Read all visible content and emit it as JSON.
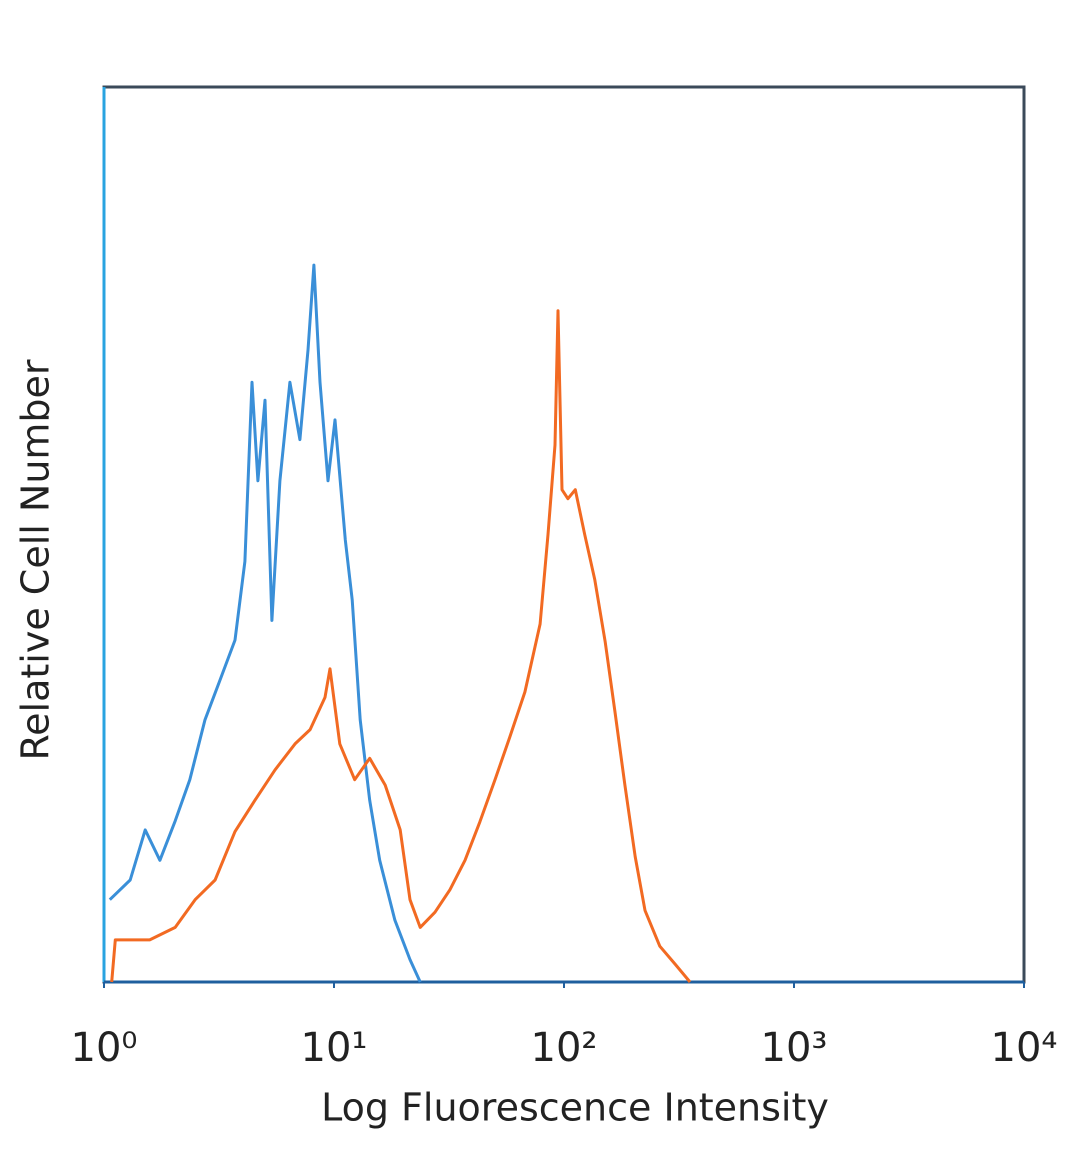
{
  "chart_data": {
    "type": "line",
    "xlabel": "Log Fluorescence Intensity",
    "ylabel": "Relative Cell Number",
    "xscale": "log",
    "xlim": [
      1,
      10000
    ],
    "xticks": [
      {
        "value": 1,
        "label": "10⁰"
      },
      {
        "value": 10,
        "label": "10¹"
      },
      {
        "value": 100,
        "label": "10²"
      },
      {
        "value": 1000,
        "label": "10³"
      },
      {
        "value": 10000,
        "label": "10⁴"
      }
    ],
    "ylim": [
      0,
      100
    ],
    "grid": false,
    "series": [
      {
        "color": "#3a8fd8",
        "x": [
          1.06,
          1.3,
          1.51,
          1.75,
          2.04,
          2.36,
          2.75,
          3.19,
          3.71,
          4.1,
          4.4,
          4.67,
          5.01,
          5.37,
          5.82,
          6.43,
          7.11,
          7.71,
          8.18,
          8.69,
          9.42,
          10.1,
          11.2,
          12.0,
          13.0,
          14.3,
          15.8,
          18.4,
          21.4,
          23.7
        ],
        "values": [
          9.2,
          11.4,
          17,
          13.6,
          18,
          22.6,
          29.3,
          33.7,
          38.2,
          47,
          67,
          56,
          65,
          40.4,
          56,
          67,
          60.6,
          70.6,
          80.1,
          67,
          56,
          62.8,
          49.4,
          42.7,
          29.3,
          20.3,
          13.6,
          6.9,
          2.5,
          0
        ]
      },
      {
        "color": "#f26a22",
        "x": [
          1.08,
          1.12,
          1.58,
          2.04,
          2.49,
          3.04,
          3.71,
          4.53,
          5.54,
          6.77,
          7.87,
          9.14,
          9.61,
          10.6,
          12.3,
          14.3,
          16.7,
          19.4,
          21.4,
          23.7,
          27.5,
          31.9,
          37.1,
          43.1,
          50.1,
          58.2,
          67.6,
          78.7,
          85.2,
          91.4,
          94.2,
          98.0,
          104,
          112,
          123,
          136,
          151,
          167,
          184,
          204,
          225,
          261,
          304,
          353
        ],
        "values": [
          0,
          4.7,
          4.7,
          6.1,
          9.2,
          11.4,
          16.8,
          20.3,
          23.7,
          26.6,
          28.2,
          31.8,
          35,
          26.6,
          22.6,
          25,
          22,
          17,
          9.2,
          6.1,
          7.8,
          10.3,
          13.6,
          17.9,
          22.6,
          27.4,
          32.4,
          40,
          50,
          60,
          75,
          55,
          54,
          55,
          50,
          45,
          38,
          30,
          22,
          14,
          8,
          4,
          2,
          0
        ]
      }
    ]
  }
}
